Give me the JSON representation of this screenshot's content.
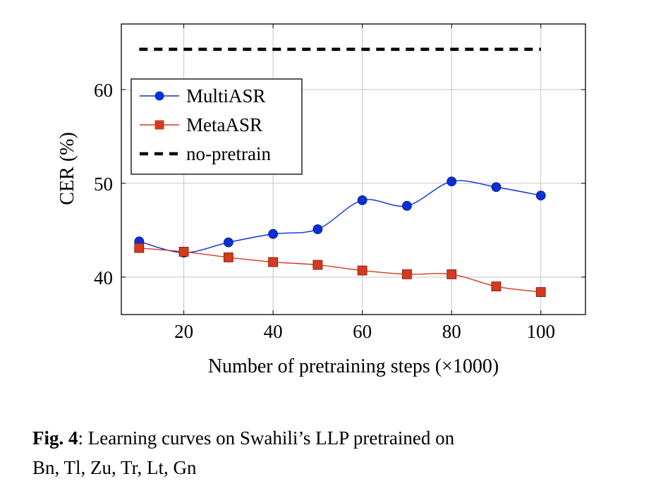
{
  "chart_data": {
    "type": "line",
    "xlabel": "Number of pretraining steps (×1000)",
    "ylabel": "CER (%)",
    "xlim": [
      6,
      110
    ],
    "ylim": [
      36,
      67
    ],
    "xticks": [
      20,
      40,
      60,
      80,
      100
    ],
    "yticks": [
      40,
      50,
      60
    ],
    "grid": true,
    "legend_position": "top-left",
    "x": [
      10,
      20,
      30,
      40,
      50,
      60,
      70,
      80,
      90,
      100
    ],
    "series": [
      {
        "name": "MultiASR",
        "marker": "circle",
        "color": "#0a2fd8",
        "values": [
          43.8,
          42.6,
          43.7,
          44.6,
          45.1,
          48.2,
          47.6,
          50.2,
          49.6,
          48.7
        ]
      },
      {
        "name": "MetaASR",
        "marker": "square",
        "color": "#d33a1e",
        "values": [
          43.1,
          42.7,
          42.1,
          41.6,
          41.3,
          40.7,
          40.3,
          40.3,
          39.0,
          38.4
        ]
      },
      {
        "name": "no-pretrain",
        "marker": "none",
        "style": "dashed",
        "color": "#000000",
        "x": [
          10,
          100
        ],
        "values": [
          64.3,
          64.3
        ]
      }
    ]
  },
  "caption": {
    "label": "Fig. 4",
    "text": ": Learning curves on Swahili’s LLP pretrained on Bn, Tl, Zu, Tr, Lt, Gn"
  }
}
